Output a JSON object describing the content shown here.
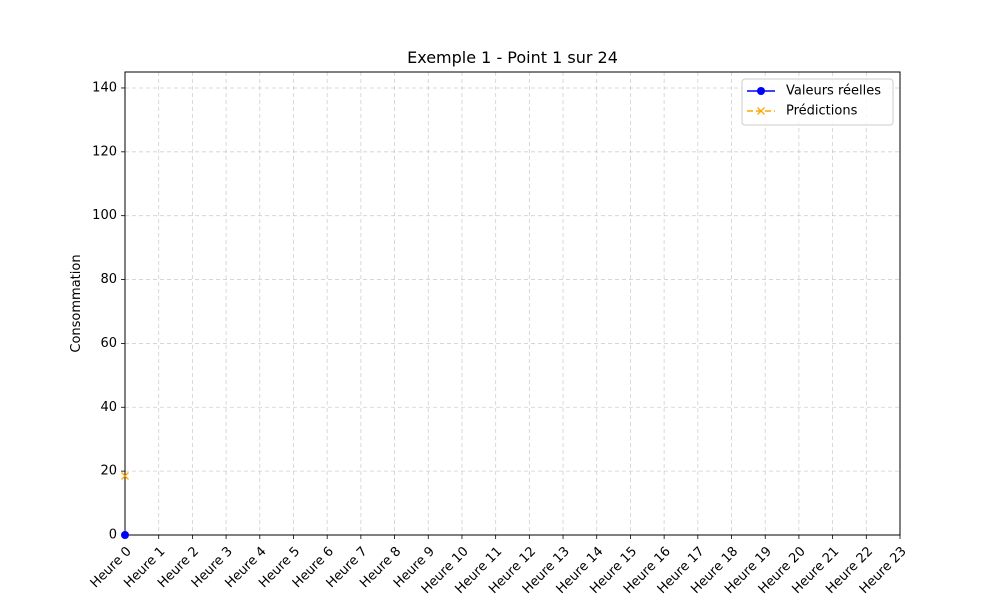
{
  "chart_data": {
    "type": "line",
    "title": "Exemple 1 - Point 1 sur 24",
    "xlabel": "",
    "ylabel": "Consommation",
    "categories": [
      "Heure 0",
      "Heure 1",
      "Heure 2",
      "Heure 3",
      "Heure 4",
      "Heure 5",
      "Heure 6",
      "Heure 7",
      "Heure 8",
      "Heure 9",
      "Heure 10",
      "Heure 11",
      "Heure 12",
      "Heure 13",
      "Heure 14",
      "Heure 15",
      "Heure 16",
      "Heure 17",
      "Heure 18",
      "Heure 19",
      "Heure 20",
      "Heure 21",
      "Heure 22",
      "Heure 23"
    ],
    "ylim": [
      0,
      145
    ],
    "yticks": [
      0,
      20,
      40,
      60,
      80,
      100,
      120,
      140
    ],
    "grid": true,
    "legend_position": "top-right",
    "series": [
      {
        "name": "Valeurs réelles",
        "x": [
          0
        ],
        "values": [
          0
        ],
        "color": "#0000ff",
        "marker": "circle",
        "line_style": "solid"
      },
      {
        "name": "Prédictions",
        "x": [
          0
        ],
        "values": [
          18.5
        ],
        "color": "#ffa500",
        "marker": "x",
        "line_style": "dashed"
      }
    ]
  }
}
